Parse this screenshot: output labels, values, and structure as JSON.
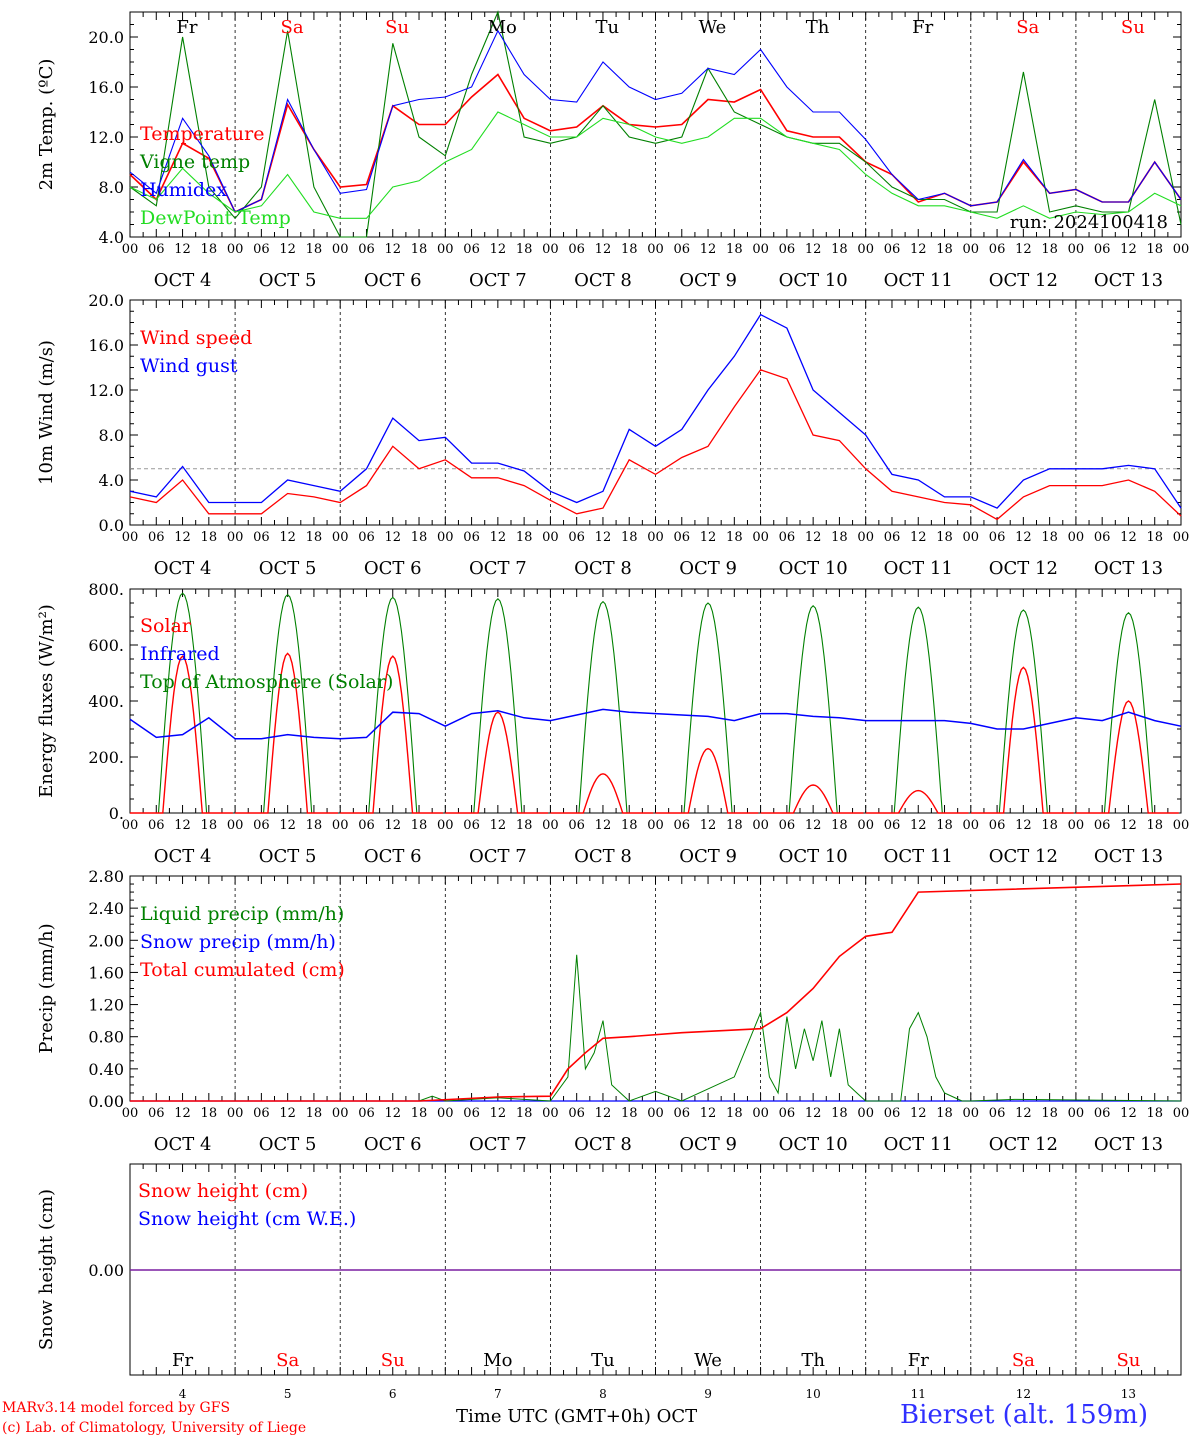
{
  "colors": {
    "red": "#ff0000",
    "blue": "#0000ff",
    "darkgreen": "#008000",
    "lightgreen": "#22dd22",
    "purple": "#7a1fa0",
    "gray": "#999999"
  },
  "days": {
    "weekday": [
      "Fr",
      "Sa",
      "Su",
      "Mo",
      "Tu",
      "We",
      "Th",
      "Fr",
      "Sa",
      "Su"
    ],
    "weekday_colors": [
      "#000000",
      "#ff0000",
      "#ff0000",
      "#000000",
      "#000000",
      "#000000",
      "#000000",
      "#000000",
      "#ff0000",
      "#ff0000"
    ],
    "dates": [
      "OCT  4",
      "OCT  5",
      "OCT  6",
      "OCT  7",
      "OCT  8",
      "OCT  9",
      "OCT 10",
      "OCT 11",
      "OCT 12",
      "OCT 13"
    ],
    "numbers": [
      "4",
      "5",
      "6",
      "7",
      "8",
      "9",
      "10",
      "11",
      "12",
      "13"
    ],
    "hour_ticks": [
      "00",
      "06",
      "12",
      "18"
    ],
    "final_hour": "00"
  },
  "chart_data": [
    {
      "type": "line",
      "ylabel": "2m Temp. (ºC)",
      "ylim": [
        4.0,
        22.0
      ],
      "yticks": [
        "4.0",
        "8.0",
        "12.0",
        "16.0",
        "20.0"
      ],
      "x_unit": "hours from 2024-10-04 00 UTC",
      "annotation": "run: 2024100418",
      "series": [
        {
          "name": "Temperature",
          "color": "#ff0000",
          "x": [
            0,
            6,
            12,
            18,
            24,
            30,
            36,
            42,
            48,
            54,
            60,
            66,
            72,
            78,
            84,
            90,
            96,
            102,
            108,
            114,
            120,
            126,
            132,
            138,
            144,
            150,
            156,
            162,
            168,
            174,
            180,
            186,
            192,
            198,
            204,
            210,
            216,
            222,
            228,
            234,
            240
          ],
          "values": [
            9.0,
            7.0,
            11.5,
            10.3,
            6.0,
            7.0,
            14.6,
            11.0,
            8.0,
            8.2,
            14.5,
            13.0,
            13.0,
            15.2,
            17.0,
            13.5,
            12.5,
            12.8,
            14.5,
            13.0,
            12.8,
            13.0,
            15.0,
            14.8,
            15.8,
            12.5,
            12.0,
            12.0,
            10.0,
            9.0,
            6.8,
            7.5,
            6.5,
            6.8,
            10.0,
            7.5,
            7.8,
            6.8,
            6.8,
            10.0,
            7.0
          ]
        },
        {
          "name": "Vigne temp",
          "color": "#008000",
          "x": [
            0,
            6,
            12,
            18,
            24,
            30,
            36,
            42,
            48,
            54,
            60,
            66,
            72,
            78,
            84,
            90,
            96,
            102,
            108,
            114,
            120,
            126,
            132,
            138,
            144,
            150,
            156,
            162,
            168,
            174,
            180,
            186,
            192,
            198,
            204,
            210,
            216,
            222,
            228,
            234,
            240
          ],
          "values": [
            8.0,
            6.5,
            20.0,
            8.0,
            5.5,
            8.0,
            20.5,
            8.0,
            4.0,
            4.0,
            19.5,
            12.0,
            10.5,
            17.0,
            22.0,
            12.0,
            11.5,
            12.0,
            14.5,
            12.0,
            11.5,
            12.0,
            17.5,
            14.0,
            13.0,
            12.0,
            11.5,
            11.5,
            10.0,
            8.0,
            7.0,
            7.0,
            6.0,
            6.0,
            17.2,
            6.0,
            6.5,
            6.0,
            6.0,
            15.0,
            5.0
          ]
        },
        {
          "name": "Humidex",
          "color": "#0000ff",
          "x": [
            0,
            6,
            12,
            18,
            24,
            30,
            36,
            42,
            48,
            54,
            60,
            66,
            72,
            78,
            84,
            90,
            96,
            102,
            108,
            114,
            120,
            126,
            132,
            138,
            144,
            150,
            156,
            162,
            168,
            174,
            180,
            186,
            192,
            198,
            204,
            210,
            216,
            222,
            228,
            234,
            240
          ],
          "values": [
            9.2,
            7.5,
            13.5,
            10.5,
            6.0,
            7.0,
            15.0,
            11.0,
            7.5,
            7.8,
            14.5,
            15.0,
            15.2,
            16.0,
            20.5,
            17.0,
            15.0,
            14.8,
            18.0,
            16.0,
            15.0,
            15.5,
            17.5,
            17.0,
            19.0,
            16.0,
            14.0,
            14.0,
            11.8,
            9.0,
            7.0,
            7.5,
            6.5,
            6.8,
            10.2,
            7.5,
            7.8,
            6.8,
            6.8,
            10.0,
            7.0
          ]
        },
        {
          "name": "DewPoint Temp",
          "color": "#22dd22",
          "x": [
            0,
            6,
            12,
            18,
            24,
            30,
            36,
            42,
            48,
            54,
            60,
            66,
            72,
            78,
            84,
            90,
            96,
            102,
            108,
            114,
            120,
            126,
            132,
            138,
            144,
            150,
            156,
            162,
            168,
            174,
            180,
            186,
            192,
            198,
            204,
            210,
            216,
            222,
            228,
            234,
            240
          ],
          "values": [
            8.0,
            7.0,
            9.5,
            7.5,
            6.0,
            6.5,
            9.0,
            6.0,
            5.5,
            5.5,
            8.0,
            8.5,
            10.0,
            11.0,
            14.0,
            13.0,
            12.0,
            12.0,
            13.5,
            13.0,
            12.0,
            11.5,
            12.0,
            13.5,
            13.5,
            12.0,
            11.5,
            11.0,
            9.0,
            7.5,
            6.5,
            6.5,
            6.0,
            5.5,
            6.5,
            5.5,
            6.0,
            5.8,
            6.0,
            7.5,
            6.5
          ]
        }
      ]
    },
    {
      "type": "line",
      "ylabel": "10m Wind (m/s)",
      "ylim": [
        0.0,
        20.0
      ],
      "yticks": [
        "0.0",
        "4.0",
        "8.0",
        "12.0",
        "16.0",
        "20.0"
      ],
      "reference_line": 5.0,
      "series": [
        {
          "name": "Wind speed",
          "color": "#ff0000",
          "x": [
            0,
            6,
            12,
            18,
            24,
            30,
            36,
            42,
            48,
            54,
            60,
            66,
            72,
            78,
            84,
            90,
            96,
            102,
            108,
            114,
            120,
            126,
            132,
            138,
            144,
            150,
            156,
            162,
            168,
            174,
            180,
            186,
            192,
            198,
            204,
            210,
            216,
            222,
            228,
            234,
            240
          ],
          "values": [
            2.5,
            2.0,
            4.0,
            1.0,
            1.0,
            1.0,
            2.8,
            2.5,
            2.0,
            3.5,
            7.0,
            5.0,
            5.8,
            4.2,
            4.2,
            3.5,
            2.2,
            1.0,
            1.5,
            5.8,
            4.5,
            6.0,
            7.0,
            10.5,
            13.8,
            13.0,
            8.0,
            7.5,
            5.0,
            3.0,
            2.5,
            2.0,
            1.8,
            0.5,
            2.5,
            3.5,
            3.5,
            3.5,
            4.0,
            3.0,
            0.8
          ]
        },
        {
          "name": "Wind gust",
          "color": "#0000ff",
          "x": [
            0,
            6,
            12,
            18,
            24,
            30,
            36,
            42,
            48,
            54,
            60,
            66,
            72,
            78,
            84,
            90,
            96,
            102,
            108,
            114,
            120,
            126,
            132,
            138,
            144,
            150,
            156,
            162,
            168,
            174,
            180,
            186,
            192,
            198,
            204,
            210,
            216,
            222,
            228,
            234,
            240
          ],
          "values": [
            3.0,
            2.5,
            5.2,
            2.0,
            2.0,
            2.0,
            4.0,
            3.5,
            3.0,
            5.0,
            9.5,
            7.5,
            7.8,
            5.5,
            5.5,
            4.8,
            3.0,
            2.0,
            3.0,
            8.5,
            7.0,
            8.5,
            12.0,
            15.0,
            18.7,
            17.5,
            12.0,
            10.0,
            8.0,
            4.5,
            4.0,
            2.5,
            2.5,
            1.5,
            4.0,
            5.0,
            5.0,
            5.0,
            5.3,
            5.0,
            1.5
          ]
        }
      ]
    },
    {
      "type": "line",
      "ylabel": "Energy fluxes (W/m²)",
      "ylim": [
        0,
        800
      ],
      "yticks": [
        "0.",
        "200.",
        "400.",
        "600.",
        "800."
      ],
      "series": [
        {
          "name": "Solar",
          "color": "#ff0000",
          "day_peaks": [
            560,
            570,
            560,
            360,
            140,
            230,
            100,
            80,
            520,
            400
          ]
        },
        {
          "name": "Infrared",
          "color": "#0000ff",
          "x": [
            0,
            6,
            12,
            18,
            24,
            30,
            36,
            42,
            48,
            54,
            60,
            66,
            72,
            78,
            84,
            90,
            96,
            102,
            108,
            114,
            120,
            126,
            132,
            138,
            144,
            150,
            156,
            162,
            168,
            174,
            180,
            186,
            192,
            198,
            204,
            210,
            216,
            222,
            228,
            234,
            240
          ],
          "values": [
            335,
            270,
            280,
            340,
            265,
            265,
            280,
            270,
            265,
            270,
            360,
            355,
            310,
            355,
            365,
            340,
            330,
            350,
            370,
            360,
            355,
            350,
            345,
            330,
            355,
            355,
            345,
            340,
            330,
            330,
            330,
            330,
            320,
            300,
            300,
            320,
            340,
            330,
            360,
            330,
            310
          ]
        },
        {
          "name": "Top of Atmosphere (Solar)",
          "color": "#008000",
          "day_peaks": [
            785,
            780,
            770,
            765,
            755,
            750,
            740,
            735,
            725,
            715
          ]
        }
      ]
    },
    {
      "type": "line",
      "ylabel": "Precip (mm/h)",
      "ylim": [
        0.0,
        2.8
      ],
      "yticks": [
        "0.00",
        "0.40",
        "0.80",
        "1.20",
        "1.60",
        "2.00",
        "2.40",
        "2.80"
      ],
      "series": [
        {
          "name": "Liquid precip (mm/h)",
          "color": "#008000",
          "x": [
            0,
            66,
            69,
            72,
            84,
            96,
            100,
            102,
            104,
            106,
            108,
            110,
            112,
            114,
            120,
            126,
            138,
            144,
            146,
            148,
            150,
            152,
            154,
            156,
            158,
            160,
            162,
            164,
            166,
            168,
            176,
            178,
            180,
            182,
            184,
            186,
            188,
            190,
            192,
            202,
            240
          ],
          "values": [
            0,
            0,
            0.06,
            0,
            0.04,
            0,
            0.3,
            1.82,
            0.4,
            0.6,
            1.0,
            0.2,
            0.1,
            0,
            0.12,
            0,
            0.3,
            1.1,
            0.3,
            0.1,
            1.05,
            0.4,
            0.9,
            0.5,
            1.0,
            0.3,
            0.9,
            0.2,
            0.1,
            0,
            0,
            0.9,
            1.1,
            0.8,
            0.3,
            0.1,
            0.05,
            0,
            0,
            0.02,
            0
          ]
        },
        {
          "name": "Snow precip (mm/h)",
          "color": "#0000ff",
          "x": [
            0,
            240
          ],
          "values": [
            0,
            0
          ]
        },
        {
          "name": "Total cumulated (cm)",
          "color": "#ff0000",
          "x": [
            0,
            66,
            84,
            96,
            100,
            104,
            108,
            114,
            126,
            144,
            150,
            156,
            162,
            168,
            174,
            180,
            240
          ],
          "values": [
            0,
            0,
            0.05,
            0.06,
            0.4,
            0.6,
            0.78,
            0.8,
            0.85,
            0.9,
            1.1,
            1.4,
            1.8,
            2.05,
            2.1,
            2.6,
            2.7
          ]
        }
      ]
    },
    {
      "type": "line",
      "ylabel": "Snow height (cm)",
      "yticks": [
        "0.00"
      ],
      "xlabel": "Time UTC (GMT+0h) OCT",
      "series": [
        {
          "name": "Snow height (cm)",
          "color": "#ff0000",
          "x": [
            0,
            240
          ],
          "values": [
            0,
            0
          ]
        },
        {
          "name": "Snow height (cm W.E.)",
          "color": "#0000ff",
          "x": [
            0,
            240
          ],
          "values": [
            0,
            0
          ]
        }
      ]
    }
  ],
  "footer": {
    "model": "MARv3.14 model forced by GFS",
    "lab": "(c) Lab. of Climatology, University of Liege",
    "time_label": "Time UTC (GMT+0h) OCT",
    "station": "Bierset (alt. 159m)"
  }
}
